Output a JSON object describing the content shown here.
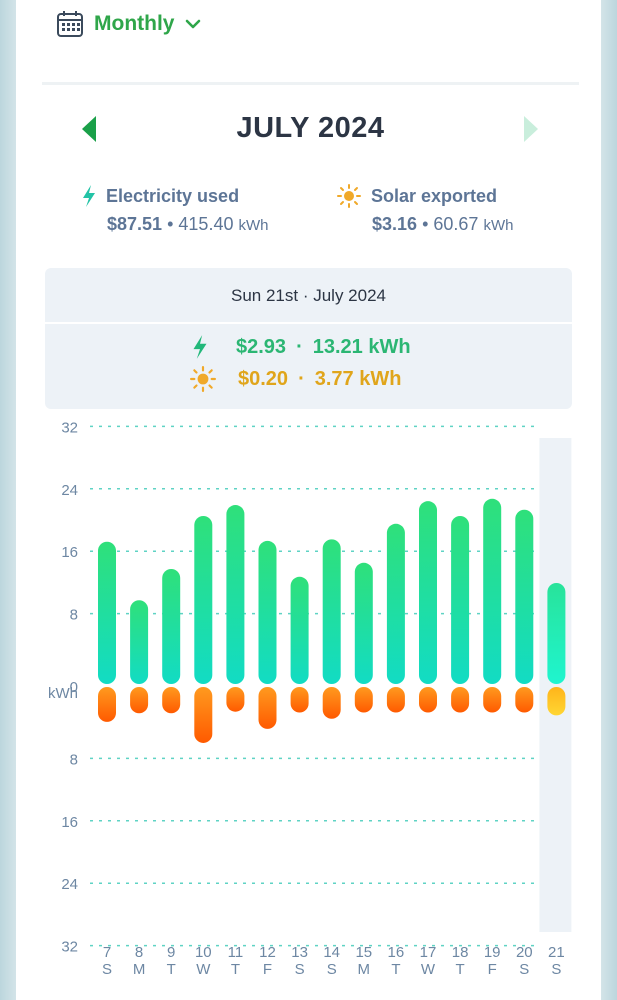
{
  "header": {
    "period_label": "Monthly",
    "month_title": "JULY 2024"
  },
  "summary": {
    "electricity": {
      "title": "Electricity used",
      "cost": "$87.51",
      "sep": "•",
      "energy": "415.40",
      "unit": "kWh"
    },
    "solar": {
      "title": "Solar exported",
      "cost": "$3.16",
      "sep": "•",
      "energy": "60.67",
      "unit": "kWh"
    }
  },
  "selected_day": {
    "date": "Sun 21st · July 2024",
    "usage": {
      "cost": "$2.93",
      "sep": "·",
      "energy": "13.21 kWh"
    },
    "solar": {
      "cost": "$0.20",
      "sep": "·",
      "energy": "3.77 kWh"
    }
  },
  "colors": {
    "accent": "#2fa64a",
    "usage_top": "#2fe07a",
    "usage_bottom": "#12dcc4",
    "solar_top": "#ff9a1f",
    "solar_bottom": "#ff5a00",
    "selected_solar_top": "#ffb41a",
    "selected_solar_bottom": "#ffd633",
    "usage_text": "#2bb673",
    "solar_text": "#e0a51b",
    "grid": "#5fd3c4",
    "axis_text": "#6d87a3",
    "nav_prev": "#1aa049",
    "nav_next": "#c9eedc"
  },
  "chart_data": {
    "type": "bar",
    "title": "",
    "ylabel": "kWh",
    "ylim": [
      -32,
      32
    ],
    "y_ticks": [
      32,
      24,
      16,
      8,
      0,
      8,
      16,
      24,
      32
    ],
    "grid": true,
    "categories": [
      "7",
      "8",
      "9",
      "10",
      "11",
      "12",
      "13",
      "14",
      "15",
      "16",
      "17",
      "18",
      "19",
      "20",
      "21"
    ],
    "weekdays": [
      "S",
      "M",
      "T",
      "W",
      "T",
      "F",
      "S",
      "S",
      "M",
      "T",
      "W",
      "T",
      "F",
      "S",
      "S"
    ],
    "selected_index": 14,
    "series": [
      {
        "name": "Electricity used",
        "values": [
          18.5,
          11,
          15,
          21.8,
          23.2,
          18.6,
          14,
          18.8,
          15.8,
          20.8,
          23.7,
          21.8,
          24,
          22.6,
          13.21
        ]
      },
      {
        "name": "Solar exported",
        "values": [
          -4.6,
          -3.5,
          -3.5,
          -7.3,
          -3.3,
          -5.5,
          -3.4,
          -4.2,
          -3.4,
          -3.4,
          -3.4,
          -3.4,
          -3.4,
          -3.4,
          -3.77
        ]
      }
    ]
  }
}
